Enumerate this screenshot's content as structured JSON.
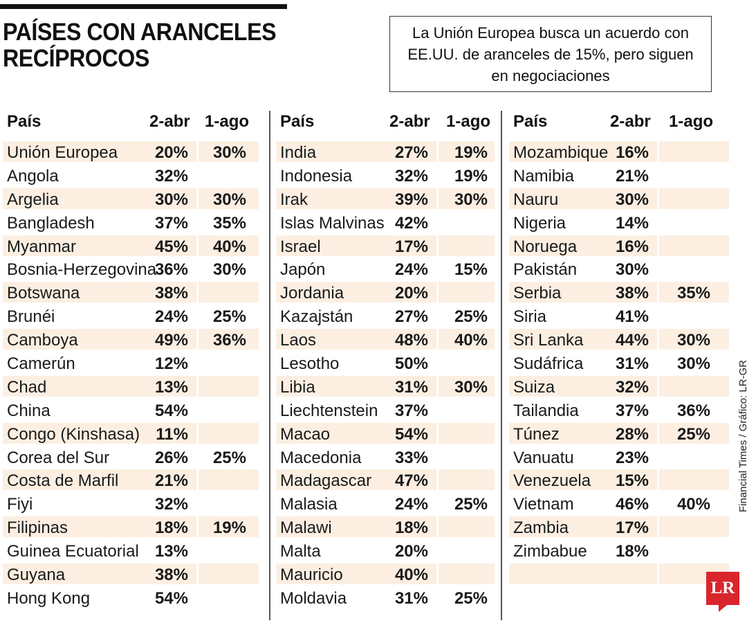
{
  "title": {
    "line1": "PAÍSES CON ARANCELES",
    "line2": "RECÍPROCOS"
  },
  "note": "La Unión Europea busca un acuerdo con EE.UU. de aranceles de 15%, pero siguen en negociaciones",
  "headers": {
    "pais": "País",
    "d1": "2-abr",
    "d2": "1-ago"
  },
  "accent_color": "#fcefe2",
  "logo_color": "#d9262c",
  "columns": [
    [
      {
        "pais": "Unión Europea",
        "d1": "20%",
        "d2": "30%"
      },
      {
        "pais": "Angola",
        "d1": "32%",
        "d2": ""
      },
      {
        "pais": "Argelia",
        "d1": "30%",
        "d2": "30%"
      },
      {
        "pais": "Bangladesh",
        "d1": "37%",
        "d2": "35%"
      },
      {
        "pais": "Myanmar",
        "d1": "45%",
        "d2": "40%"
      },
      {
        "pais": "Bosnia-Herzegovina",
        "d1": "36%",
        "d2": "30%"
      },
      {
        "pais": "Botswana",
        "d1": "38%",
        "d2": ""
      },
      {
        "pais": "Brunéi",
        "d1": "24%",
        "d2": "25%"
      },
      {
        "pais": "Camboya",
        "d1": "49%",
        "d2": "36%"
      },
      {
        "pais": "Camerún",
        "d1": "12%",
        "d2": ""
      },
      {
        "pais": "Chad",
        "d1": "13%",
        "d2": ""
      },
      {
        "pais": "China",
        "d1": "54%",
        "d2": ""
      },
      {
        "pais": "Congo (Kinshasa)",
        "d1": "11%",
        "d2": ""
      },
      {
        "pais": "Corea del Sur",
        "d1": "26%",
        "d2": "25%"
      },
      {
        "pais": "Costa de Marfil",
        "d1": "21%",
        "d2": ""
      },
      {
        "pais": "Fiyi",
        "d1": "32%",
        "d2": ""
      },
      {
        "pais": "Filipinas",
        "d1": "18%",
        "d2": "19%"
      },
      {
        "pais": "Guinea Ecuatorial",
        "d1": "13%",
        "d2": ""
      },
      {
        "pais": "Guyana",
        "d1": "38%",
        "d2": ""
      },
      {
        "pais": "Hong Kong",
        "d1": "54%",
        "d2": ""
      }
    ],
    [
      {
        "pais": "India",
        "d1": "27%",
        "d2": "19%"
      },
      {
        "pais": "Indonesia",
        "d1": "32%",
        "d2": "19%"
      },
      {
        "pais": "Irak",
        "d1": "39%",
        "d2": "30%"
      },
      {
        "pais": "Islas Malvinas",
        "d1": "42%",
        "d2": ""
      },
      {
        "pais": "Israel",
        "d1": "17%",
        "d2": ""
      },
      {
        "pais": "Japón",
        "d1": "24%",
        "d2": "15%"
      },
      {
        "pais": "Jordania",
        "d1": "20%",
        "d2": ""
      },
      {
        "pais": "Kazajstán",
        "d1": "27%",
        "d2": "25%"
      },
      {
        "pais": "Laos",
        "d1": "48%",
        "d2": "40%"
      },
      {
        "pais": "Lesotho",
        "d1": "50%",
        "d2": ""
      },
      {
        "pais": "Libia",
        "d1": "31%",
        "d2": "30%"
      },
      {
        "pais": "Liechtenstein",
        "d1": "37%",
        "d2": ""
      },
      {
        "pais": "Macao",
        "d1": "54%",
        "d2": ""
      },
      {
        "pais": "Macedonia",
        "d1": "33%",
        "d2": ""
      },
      {
        "pais": "Madagascar",
        "d1": "47%",
        "d2": ""
      },
      {
        "pais": "Malasia",
        "d1": "24%",
        "d2": "25%"
      },
      {
        "pais": "Malawi",
        "d1": "18%",
        "d2": ""
      },
      {
        "pais": "Malta",
        "d1": "20%",
        "d2": ""
      },
      {
        "pais": "Mauricio",
        "d1": "40%",
        "d2": ""
      },
      {
        "pais": "Moldavia",
        "d1": "31%",
        "d2": "25%"
      }
    ],
    [
      {
        "pais": "Mozambique",
        "d1": "16%",
        "d2": ""
      },
      {
        "pais": "Namibia",
        "d1": "21%",
        "d2": ""
      },
      {
        "pais": "Nauru",
        "d1": "30%",
        "d2": ""
      },
      {
        "pais": "Nigeria",
        "d1": "14%",
        "d2": ""
      },
      {
        "pais": "Noruega",
        "d1": "16%",
        "d2": ""
      },
      {
        "pais": "Pakistán",
        "d1": "30%",
        "d2": ""
      },
      {
        "pais": "Serbia",
        "d1": "38%",
        "d2": "35%"
      },
      {
        "pais": "Siria",
        "d1": "41%",
        "d2": ""
      },
      {
        "pais": "Sri Lanka",
        "d1": "44%",
        "d2": "30%"
      },
      {
        "pais": "Sudáfrica",
        "d1": "31%",
        "d2": "30%"
      },
      {
        "pais": "Suiza",
        "d1": "32%",
        "d2": ""
      },
      {
        "pais": "Tailandia",
        "d1": "37%",
        "d2": "36%"
      },
      {
        "pais": "Túnez",
        "d1": "28%",
        "d2": "25%"
      },
      {
        "pais": "Vanuatu",
        "d1": "23%",
        "d2": ""
      },
      {
        "pais": "Venezuela",
        "d1": "15%",
        "d2": ""
      },
      {
        "pais": "Vietnam",
        "d1": "46%",
        "d2": "40%"
      },
      {
        "pais": "Zambia",
        "d1": "17%",
        "d2": ""
      },
      {
        "pais": "Zimbabue",
        "d1": "18%",
        "d2": ""
      },
      {
        "pais": "",
        "d1": "",
        "d2": ""
      },
      {
        "pais": "",
        "d1": "",
        "d2": ""
      }
    ]
  ],
  "source": "Financial Times / Gráfico: LR-GR",
  "logo": "LR"
}
